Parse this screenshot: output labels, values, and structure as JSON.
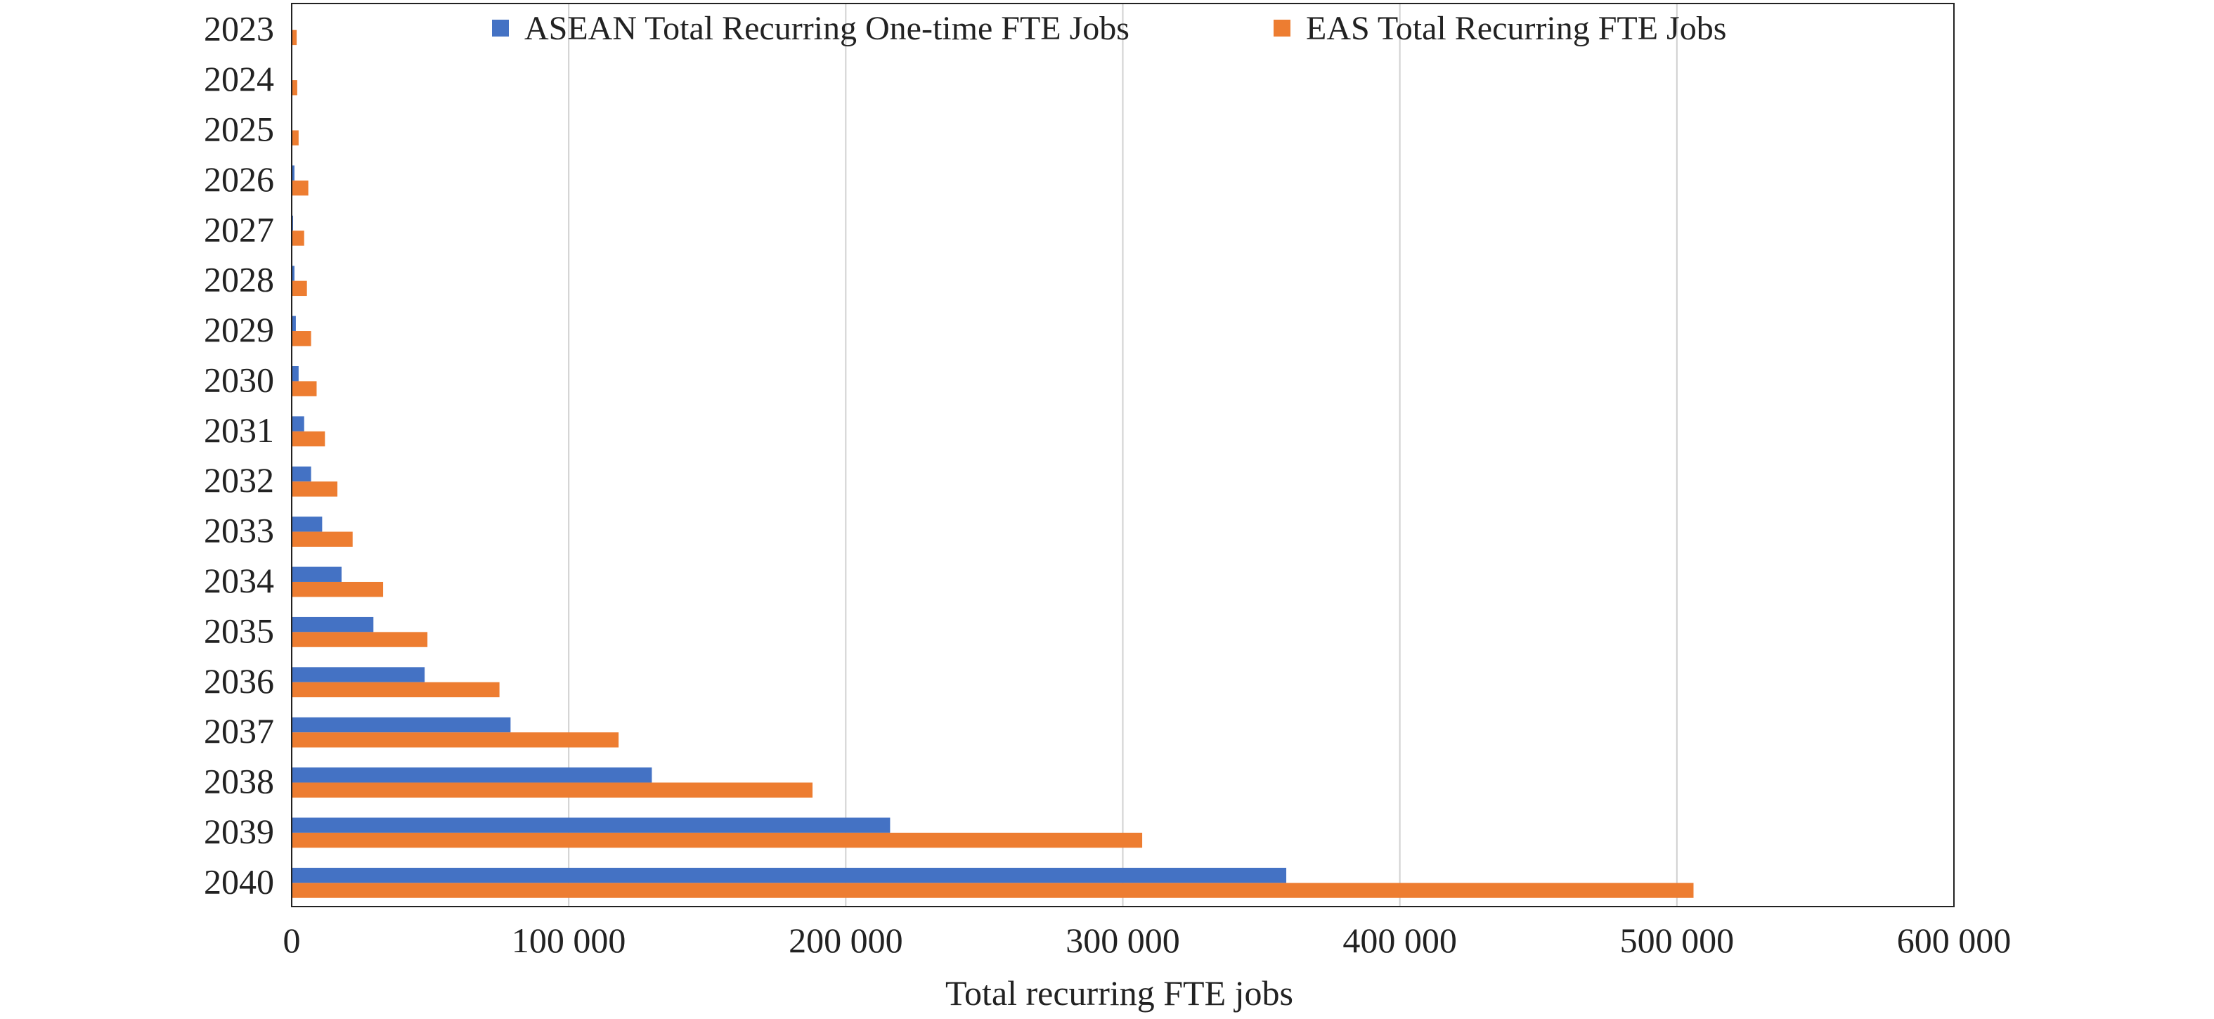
{
  "chart_data": {
    "type": "bar",
    "orientation": "horizontal",
    "categories": [
      "2023",
      "2024",
      "2025",
      "2026",
      "2027",
      "2028",
      "2029",
      "2030",
      "2031",
      "2032",
      "2033",
      "2034",
      "2035",
      "2036",
      "2037",
      "2038",
      "2039",
      "2040"
    ],
    "series": [
      {
        "name": "ASEAN Total Recurring One-time FTE Jobs",
        "color": "#4472C4",
        "values": [
          0,
          0,
          0,
          1000,
          500,
          1000,
          1500,
          2500,
          4500,
          7000,
          11000,
          18000,
          29500,
          48000,
          79000,
          130000,
          216000,
          359000
        ]
      },
      {
        "name": "EAS Total Recurring FTE Jobs",
        "color": "#ED7D31",
        "values": [
          1800,
          2000,
          2500,
          6000,
          4500,
          5500,
          7000,
          9000,
          12000,
          16500,
          22000,
          33000,
          49000,
          75000,
          118000,
          188000,
          307000,
          506000
        ]
      }
    ],
    "xlabel": "Total recurring FTE jobs",
    "ylabel": "",
    "xlim": [
      0,
      600000
    ],
    "xticks": [
      0,
      100000,
      200000,
      300000,
      400000,
      500000,
      600000
    ],
    "xtick_labels": [
      "0",
      "100 000",
      "200 000",
      "300 000",
      "400 000",
      "500 000",
      "600 000"
    ],
    "grid": "vertical",
    "legend_position": "top-center",
    "gridline_color": "#d0d0d0"
  }
}
